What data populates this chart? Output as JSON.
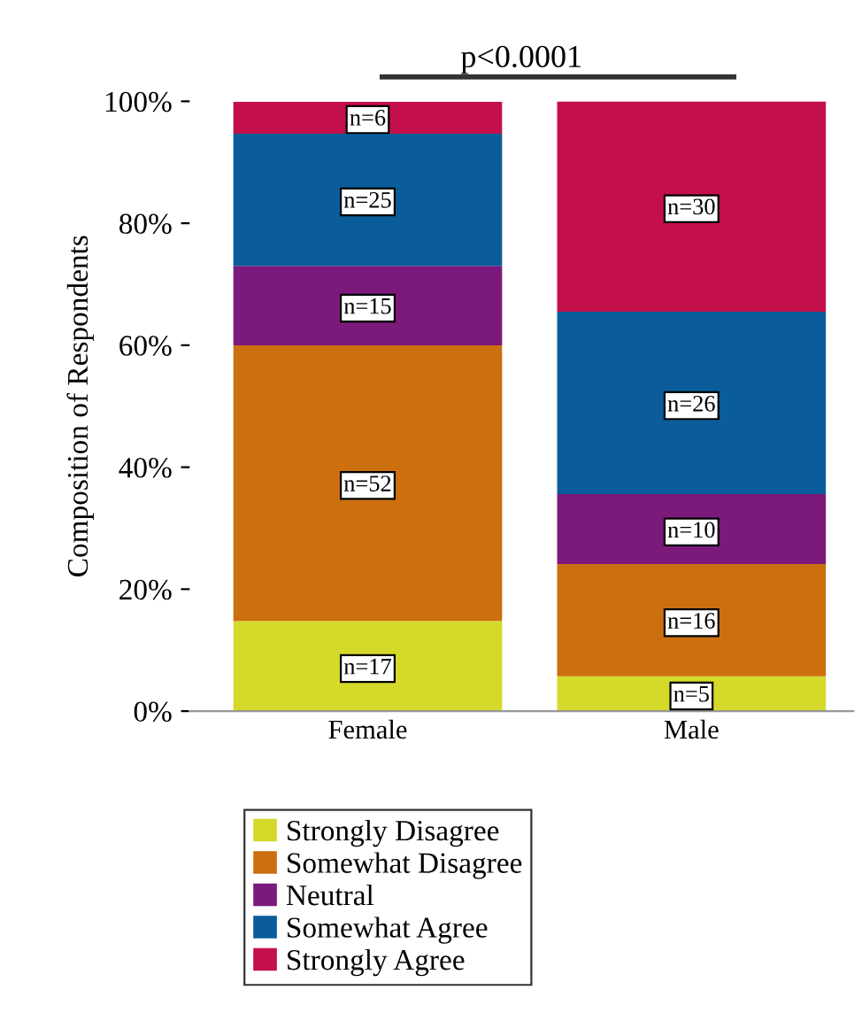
{
  "chart_data": {
    "type": "bar",
    "stacked": true,
    "ylabel": "Composition of Respondents",
    "categories": [
      "Female",
      "Male"
    ],
    "series": [
      {
        "name": "Strongly Disagree",
        "color": "#d4d92a",
        "values": [
          14.8,
          5.7
        ]
      },
      {
        "name": "Somewhat Disagree",
        "color": "#cc6f0f",
        "values": [
          45.2,
          18.4
        ]
      },
      {
        "name": "Neutral",
        "color": "#7b1a7b",
        "values": [
          13.0,
          11.5
        ]
      },
      {
        "name": "Somewhat Agree",
        "color": "#0a5d9a",
        "values": [
          21.7,
          29.9
        ]
      },
      {
        "name": "Strongly Agree",
        "color": "#c4104a",
        "values": [
          5.2,
          34.5
        ]
      }
    ],
    "ylim": [
      0,
      100
    ],
    "yticks": [
      {
        "value": 0,
        "label": "0%"
      },
      {
        "value": 20,
        "label": "20%"
      },
      {
        "value": 40,
        "label": "40%"
      },
      {
        "value": 60,
        "label": "60%"
      },
      {
        "value": 80,
        "label": "80%"
      },
      {
        "value": 100,
        "label": "100%"
      }
    ],
    "annotations": [
      "p<0.0001",
      {
        "text": "n=17",
        "x": "Female",
        "y": 7.4
      },
      {
        "text": "n=52",
        "x": "Female",
        "y": 37.4
      },
      {
        "text": "n=15",
        "x": "Female",
        "y": 66.5
      },
      {
        "text": "n=25",
        "x": "Female",
        "y": 83.9
      },
      {
        "text": "n=6",
        "x": "Female",
        "y": 97.4
      },
      {
        "text": "n=5",
        "x": "Male",
        "y": 2.9
      },
      {
        "text": "n=16",
        "x": "Male",
        "y": 14.9
      },
      {
        "text": "n=10",
        "x": "Male",
        "y": 29.8
      },
      {
        "text": "n=26",
        "x": "Male",
        "y": 50.5
      },
      {
        "text": "n=30",
        "x": "Male",
        "y": 82.8
      }
    ],
    "legend": "bottom",
    "grid": false
  }
}
